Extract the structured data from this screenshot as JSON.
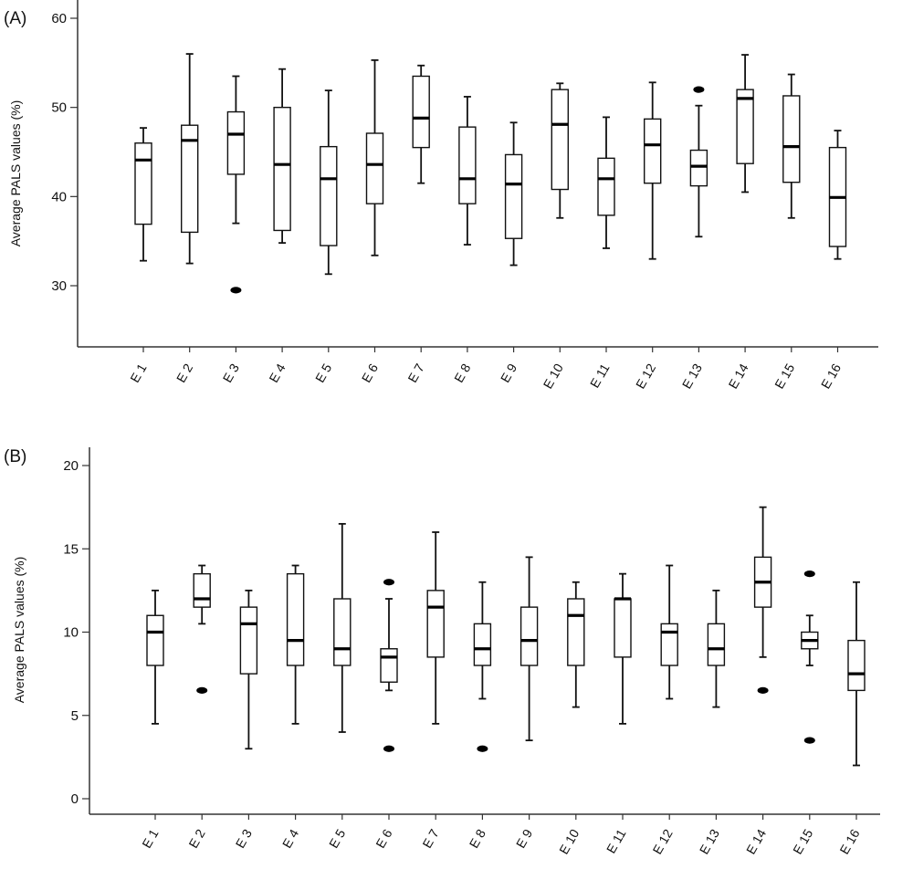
{
  "chart_data": [
    {
      "type": "box",
      "panel_label": "(A)",
      "ylabel": "Average PALS values (%)",
      "yticks": [
        30,
        40,
        50,
        60
      ],
      "ylim": [
        23.5,
        60
      ],
      "categories": [
        "E 1",
        "E 2",
        "E 3",
        "E 4",
        "E 5",
        "E 6",
        "E 7",
        "E 8",
        "E 9",
        "E 10",
        "E 11",
        "E 12",
        "E 13",
        "E 14",
        "E 15",
        "E 16"
      ],
      "boxes": [
        {
          "whisker_low": 32.8,
          "q1": 36.9,
          "median": 44.1,
          "q3": 46.0,
          "whisker_high": 47.7,
          "outliers": []
        },
        {
          "whisker_low": 32.5,
          "q1": 36.0,
          "median": 46.3,
          "q3": 48.0,
          "whisker_high": 56.0,
          "outliers": []
        },
        {
          "whisker_low": 37.0,
          "q1": 42.5,
          "median": 47.0,
          "q3": 49.5,
          "whisker_high": 53.5,
          "outliers": [
            29.5
          ]
        },
        {
          "whisker_low": 34.8,
          "q1": 36.2,
          "median": 43.6,
          "q3": 50.0,
          "whisker_high": 54.3,
          "outliers": []
        },
        {
          "whisker_low": 31.3,
          "q1": 34.5,
          "median": 42.0,
          "q3": 45.6,
          "whisker_high": 51.9,
          "outliers": []
        },
        {
          "whisker_low": 33.4,
          "q1": 39.2,
          "median": 43.6,
          "q3": 47.1,
          "whisker_high": 55.3,
          "outliers": []
        },
        {
          "whisker_low": 41.5,
          "q1": 45.5,
          "median": 48.8,
          "q3": 53.5,
          "whisker_high": 54.7,
          "outliers": []
        },
        {
          "whisker_low": 34.6,
          "q1": 39.2,
          "median": 42.0,
          "q3": 47.8,
          "whisker_high": 51.2,
          "outliers": []
        },
        {
          "whisker_low": 32.3,
          "q1": 35.3,
          "median": 41.4,
          "q3": 44.7,
          "whisker_high": 48.3,
          "outliers": []
        },
        {
          "whisker_low": 37.6,
          "q1": 40.8,
          "median": 48.1,
          "q3": 52.0,
          "whisker_high": 52.7,
          "outliers": []
        },
        {
          "whisker_low": 34.2,
          "q1": 37.9,
          "median": 42.0,
          "q3": 44.3,
          "whisker_high": 48.9,
          "outliers": []
        },
        {
          "whisker_low": 33.0,
          "q1": 41.5,
          "median": 45.8,
          "q3": 48.7,
          "whisker_high": 52.8,
          "outliers": []
        },
        {
          "whisker_low": 35.5,
          "q1": 41.2,
          "median": 43.4,
          "q3": 45.2,
          "whisker_high": 50.2,
          "outliers": [
            52.0
          ]
        },
        {
          "whisker_low": 40.5,
          "q1": 43.7,
          "median": 51.0,
          "q3": 52.0,
          "whisker_high": 55.9,
          "outliers": []
        },
        {
          "whisker_low": 37.6,
          "q1": 41.6,
          "median": 45.6,
          "q3": 51.3,
          "whisker_high": 53.7,
          "outliers": []
        },
        {
          "whisker_low": 33.0,
          "q1": 34.4,
          "median": 39.9,
          "q3": 45.5,
          "whisker_high": 47.4,
          "outliers": []
        }
      ]
    },
    {
      "type": "box",
      "panel_label": "(B)",
      "ylabel": "Average PALS values (%)",
      "yticks": [
        0,
        5,
        10,
        15,
        20
      ],
      "ylim": [
        -1,
        21
      ],
      "categories": [
        "E 1",
        "E 2",
        "E 3",
        "E 4",
        "E 5",
        "E 6",
        "E 7",
        "E 8",
        "E 9",
        "E 10",
        "E 11",
        "E 12",
        "E 13",
        "E 14",
        "E 15",
        "E 16"
      ],
      "boxes": [
        {
          "whisker_low": 4.5,
          "q1": 8.0,
          "median": 10.0,
          "q3": 11.0,
          "whisker_high": 12.5,
          "outliers": []
        },
        {
          "whisker_low": 10.5,
          "q1": 11.5,
          "median": 12.0,
          "q3": 13.5,
          "whisker_high": 14.0,
          "outliers": [
            6.5
          ]
        },
        {
          "whisker_low": 3.0,
          "q1": 7.5,
          "median": 10.5,
          "q3": 11.5,
          "whisker_high": 12.5,
          "outliers": []
        },
        {
          "whisker_low": 4.5,
          "q1": 8.0,
          "median": 9.5,
          "q3": 13.5,
          "whisker_high": 14.0,
          "outliers": []
        },
        {
          "whisker_low": 4.0,
          "q1": 8.0,
          "median": 9.0,
          "q3": 12.0,
          "whisker_high": 16.5,
          "outliers": []
        },
        {
          "whisker_low": 6.5,
          "q1": 7.0,
          "median": 8.5,
          "q3": 9.0,
          "whisker_high": 12.0,
          "outliers": [
            13.0,
            3.0
          ]
        },
        {
          "whisker_low": 4.5,
          "q1": 8.5,
          "median": 11.5,
          "q3": 12.5,
          "whisker_high": 16.0,
          "outliers": []
        },
        {
          "whisker_low": 6.0,
          "q1": 8.0,
          "median": 9.0,
          "q3": 10.5,
          "whisker_high": 13.0,
          "outliers": [
            3.0
          ]
        },
        {
          "whisker_low": 3.5,
          "q1": 8.0,
          "median": 9.5,
          "q3": 11.5,
          "whisker_high": 14.5,
          "outliers": []
        },
        {
          "whisker_low": 5.5,
          "q1": 8.0,
          "median": 11.0,
          "q3": 12.0,
          "whisker_high": 13.0,
          "outliers": []
        },
        {
          "whisker_low": 4.5,
          "q1": 8.5,
          "median": 12.0,
          "q3": 12.0,
          "whisker_high": 13.5,
          "outliers": []
        },
        {
          "whisker_low": 6.0,
          "q1": 8.0,
          "median": 10.0,
          "q3": 10.5,
          "whisker_high": 14.0,
          "outliers": []
        },
        {
          "whisker_low": 5.5,
          "q1": 8.0,
          "median": 9.0,
          "q3": 10.5,
          "whisker_high": 12.5,
          "outliers": []
        },
        {
          "whisker_low": 8.5,
          "q1": 11.5,
          "median": 13.0,
          "q3": 14.5,
          "whisker_high": 17.5,
          "outliers": [
            6.5
          ]
        },
        {
          "whisker_low": 8.0,
          "q1": 9.0,
          "median": 9.5,
          "q3": 10.0,
          "whisker_high": 11.0,
          "outliers": [
            13.5,
            3.5
          ]
        },
        {
          "whisker_low": 2.0,
          "q1": 6.5,
          "median": 7.5,
          "q3": 9.5,
          "whisker_high": 13.0,
          "outliers": []
        }
      ]
    }
  ]
}
